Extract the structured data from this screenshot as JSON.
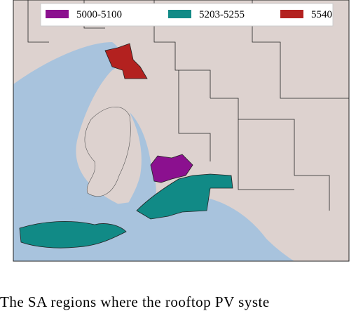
{
  "legend": {
    "items": [
      {
        "label": "5000-5100",
        "color": "#8b108f"
      },
      {
        "label": "5203-5255",
        "color": "#118a86"
      },
      {
        "label": "5540",
        "color": "#b3211f"
      }
    ]
  },
  "caption": "The SA regions where the rooftop PV syste"
}
